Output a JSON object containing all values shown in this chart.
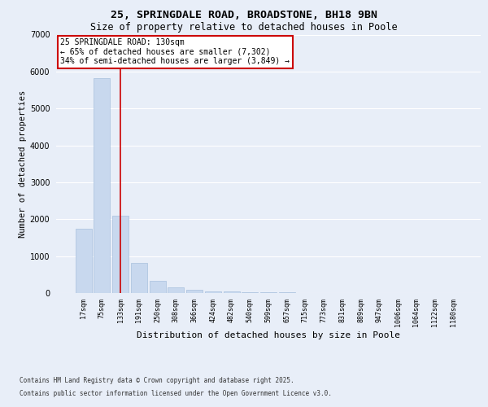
{
  "title1": "25, SPRINGDALE ROAD, BROADSTONE, BH18 9BN",
  "title2": "Size of property relative to detached houses in Poole",
  "xlabel": "Distribution of detached houses by size in Poole",
  "ylabel": "Number of detached properties",
  "categories": [
    "17sqm",
    "75sqm",
    "133sqm",
    "191sqm",
    "250sqm",
    "308sqm",
    "366sqm",
    "424sqm",
    "482sqm",
    "540sqm",
    "599sqm",
    "657sqm",
    "715sqm",
    "773sqm",
    "831sqm",
    "889sqm",
    "947sqm",
    "1006sqm",
    "1064sqm",
    "1122sqm",
    "1180sqm"
  ],
  "values": [
    1750,
    5820,
    2100,
    820,
    340,
    160,
    80,
    55,
    40,
    28,
    20,
    15,
    10,
    6,
    4,
    3,
    2,
    2,
    1,
    1,
    1
  ],
  "bar_color": "#c8d8ee",
  "bar_edgecolor": "#a8c0dd",
  "highlight_index": 2,
  "highlight_color": "#cc0000",
  "annotation_text": "25 SPRINGDALE ROAD: 130sqm\n← 65% of detached houses are smaller (7,302)\n34% of semi-detached houses are larger (3,849) →",
  "annotation_box_color": "#ffffff",
  "annotation_border_color": "#cc0000",
  "ylim": [
    0,
    7000
  ],
  "yticks": [
    0,
    1000,
    2000,
    3000,
    4000,
    5000,
    6000,
    7000
  ],
  "footer1": "Contains HM Land Registry data © Crown copyright and database right 2025.",
  "footer2": "Contains public sector information licensed under the Open Government Licence v3.0.",
  "bg_color": "#e8eef8",
  "plot_bg_color": "#e8eef8",
  "grid_color": "#ffffff",
  "title1_fontsize": 9.5,
  "title2_fontsize": 8.5,
  "ylabel_fontsize": 7.5,
  "xlabel_fontsize": 8,
  "tick_fontsize": 6,
  "footer_fontsize": 5.5,
  "ann_fontsize": 7
}
